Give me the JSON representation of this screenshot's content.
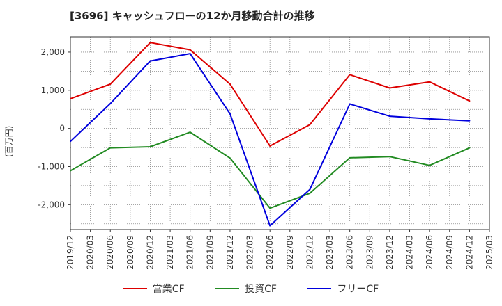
{
  "chart_data": {
    "type": "line",
    "title": "[3696]  キャッシュフローの12か月移動合計の推移",
    "ylabel": "(百万円)",
    "xlabel": "",
    "ylim": [
      -2650,
      2400
    ],
    "yticks": [
      2000,
      1000,
      0,
      -1000,
      -2000
    ],
    "ytick_labels": [
      "2,000",
      "1,000",
      "0",
      "-1,000",
      "-2,000"
    ],
    "x_ticks": [
      "2019/12",
      "2020/03",
      "2020/06",
      "2020/09",
      "2020/12",
      "2021/03",
      "2021/06",
      "2021/09",
      "2021/12",
      "2022/03",
      "2022/06",
      "2022/09",
      "2022/12",
      "2023/03",
      "2023/06",
      "2023/09",
      "2023/12",
      "2024/03",
      "2024/06",
      "2024/09",
      "2024/12",
      "2025/03"
    ],
    "series": [
      {
        "name": "営業CF",
        "color": "#dd0000",
        "points": [
          [
            0,
            780
          ],
          [
            2,
            1160
          ],
          [
            4,
            2250
          ],
          [
            6,
            2060
          ],
          [
            8,
            1160
          ],
          [
            10,
            -460
          ],
          [
            12,
            100
          ],
          [
            14,
            1410
          ],
          [
            16,
            1060
          ],
          [
            18,
            1220
          ],
          [
            20,
            720
          ]
        ]
      },
      {
        "name": "投資CF",
        "color": "#228b22",
        "points": [
          [
            0,
            -1110
          ],
          [
            2,
            -510
          ],
          [
            4,
            -480
          ],
          [
            6,
            -100
          ],
          [
            8,
            -780
          ],
          [
            10,
            -2090
          ],
          [
            12,
            -1700
          ],
          [
            14,
            -770
          ],
          [
            16,
            -740
          ],
          [
            18,
            -970
          ],
          [
            20,
            -510
          ]
        ]
      },
      {
        "name": "フリーCF",
        "color": "#0000dd",
        "points": [
          [
            0,
            -340
          ],
          [
            2,
            650
          ],
          [
            4,
            1770
          ],
          [
            6,
            1960
          ],
          [
            8,
            380
          ],
          [
            10,
            -2550
          ],
          [
            12,
            -1600
          ],
          [
            14,
            640
          ],
          [
            16,
            320
          ],
          [
            18,
            250
          ],
          [
            20,
            200
          ]
        ]
      }
    ]
  }
}
